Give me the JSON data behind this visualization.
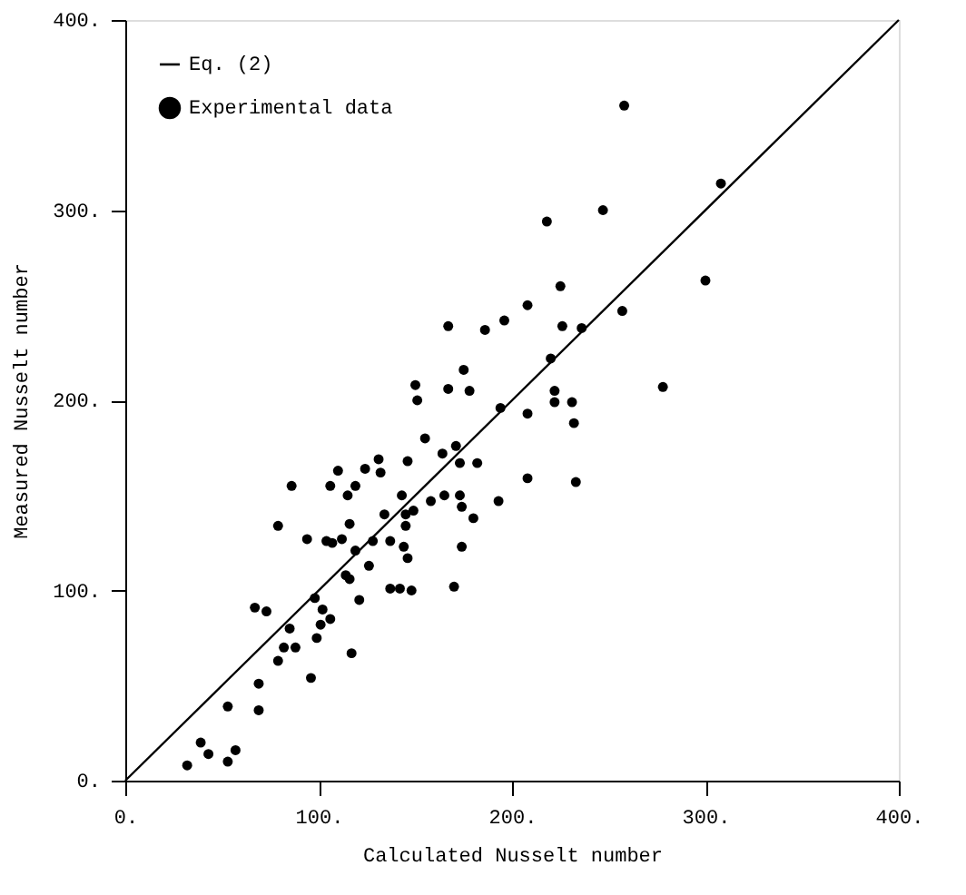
{
  "chart_data": {
    "type": "scatter",
    "xlabel": "Calculated Nusselt number",
    "ylabel": "Measured Nusselt number",
    "xlim": [
      0,
      400
    ],
    "ylim": [
      0,
      400
    ],
    "xticks": [
      {
        "value": 0,
        "label": "0."
      },
      {
        "value": 100,
        "label": "100."
      },
      {
        "value": 200,
        "label": "200."
      },
      {
        "value": 300,
        "label": "300."
      },
      {
        "value": 400,
        "label": "400."
      }
    ],
    "yticks": [
      {
        "value": 0,
        "label": "0."
      },
      {
        "value": 100,
        "label": "100."
      },
      {
        "value": 200,
        "label": "200."
      },
      {
        "value": 300,
        "label": "300."
      },
      {
        "value": 400,
        "label": "400."
      }
    ],
    "grid": false,
    "legend": "top left",
    "series": [
      {
        "name": "Eq. (2)",
        "type": "line",
        "color": "#000000",
        "marker": "none",
        "line_style": "solid",
        "x": [
          0,
          400
        ],
        "values": [
          0,
          400
        ]
      },
      {
        "name": "Experimental data",
        "type": "scatter",
        "color": "#000000",
        "marker": "circle",
        "x": [
          32,
          43,
          39,
          53,
          57,
          53,
          69,
          69,
          79,
          82,
          88,
          85,
          96,
          67,
          73,
          98,
          99,
          101,
          102,
          106,
          117,
          121,
          79,
          94,
          104,
          107,
          112,
          116,
          119,
          114,
          116,
          126,
          128,
          134,
          86,
          106,
          110,
          115,
          119,
          124,
          132,
          131,
          167,
          186,
          175,
          150,
          151,
          167,
          178,
          155,
          164,
          171,
          173,
          182,
          146,
          143,
          158,
          165,
          173,
          174,
          180,
          145,
          149,
          145,
          137,
          144,
          146,
          137,
          142,
          148,
          170,
          174,
          193,
          258,
          247,
          218,
          225,
          208,
          196,
          226,
          236,
          257,
          220,
          208,
          222,
          222,
          231,
          232,
          194,
          300,
          308,
          278,
          208,
          233
        ],
        "values": [
          8,
          14,
          20,
          10,
          16,
          39,
          37,
          51,
          63,
          70,
          70,
          80,
          54,
          91,
          89,
          96,
          75,
          82,
          90,
          85,
          67,
          95,
          134,
          127,
          126,
          125,
          127,
          135,
          121,
          108,
          106,
          113,
          126,
          140,
          155,
          155,
          163,
          150,
          155,
          164,
          162,
          169,
          239,
          237,
          216,
          208,
          200,
          206,
          205,
          180,
          172,
          176,
          167,
          167,
          168,
          150,
          147,
          150,
          150,
          144,
          138,
          140,
          142,
          134,
          126,
          123,
          117,
          101,
          101,
          100,
          102,
          123,
          147,
          355,
          300,
          294,
          260,
          250,
          242,
          239,
          238,
          247,
          222,
          193,
          205,
          199,
          199,
          188,
          196,
          263,
          314,
          207,
          159,
          157
        ]
      }
    ]
  }
}
